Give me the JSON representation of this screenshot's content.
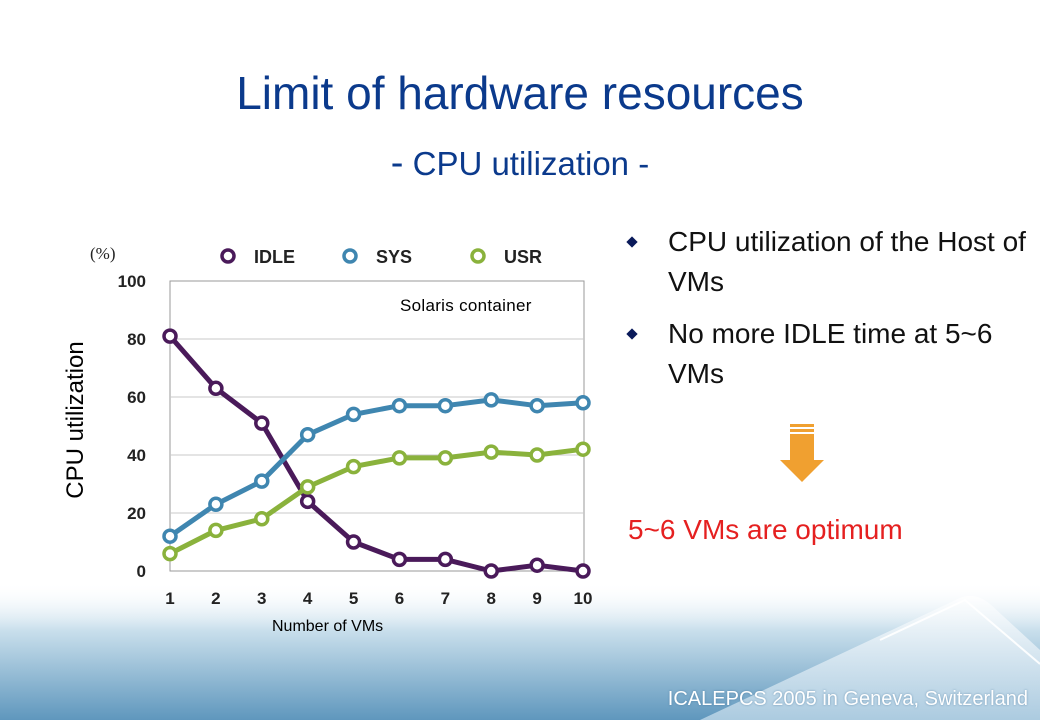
{
  "slide": {
    "title": "Limit of hardware resources",
    "subtitle": "CPU utilization",
    "subtitle_dash": "-",
    "footer": "ICALEPCS 2005 in Geneva, Switzerland",
    "colors": {
      "title": "#0b3a8c",
      "conclusion": "#e52020",
      "arrow": "#f0a030"
    }
  },
  "bullets": [
    {
      "text": "CPU utilization of the Host of VMs"
    },
    {
      "text": "No more IDLE time at 5~6 VMs"
    }
  ],
  "conclusion": "5~6 VMs are optimum",
  "chart_data": {
    "type": "line",
    "x": [
      1,
      2,
      3,
      4,
      5,
      6,
      7,
      8,
      9,
      10
    ],
    "series": [
      {
        "name": "IDLE",
        "color": "#4a1a5a",
        "values": [
          81,
          63,
          51,
          24,
          10,
          4,
          4,
          0,
          2,
          0
        ]
      },
      {
        "name": "SYS",
        "color": "#3f86b0",
        "values": [
          12,
          23,
          31,
          47,
          54,
          57,
          57,
          59,
          57,
          58
        ]
      },
      {
        "name": "USR",
        "color": "#8ab23c",
        "values": [
          6,
          14,
          18,
          29,
          36,
          39,
          39,
          41,
          40,
          42
        ]
      }
    ],
    "ylabel": "CPU utilization",
    "xlabel": "Number of VMs",
    "unit_label": "(%)",
    "annotation": "Solaris container",
    "ylim": [
      0,
      100
    ],
    "yticks": [
      0,
      20,
      40,
      60,
      80,
      100
    ],
    "grid": true,
    "legend_position": "top"
  }
}
